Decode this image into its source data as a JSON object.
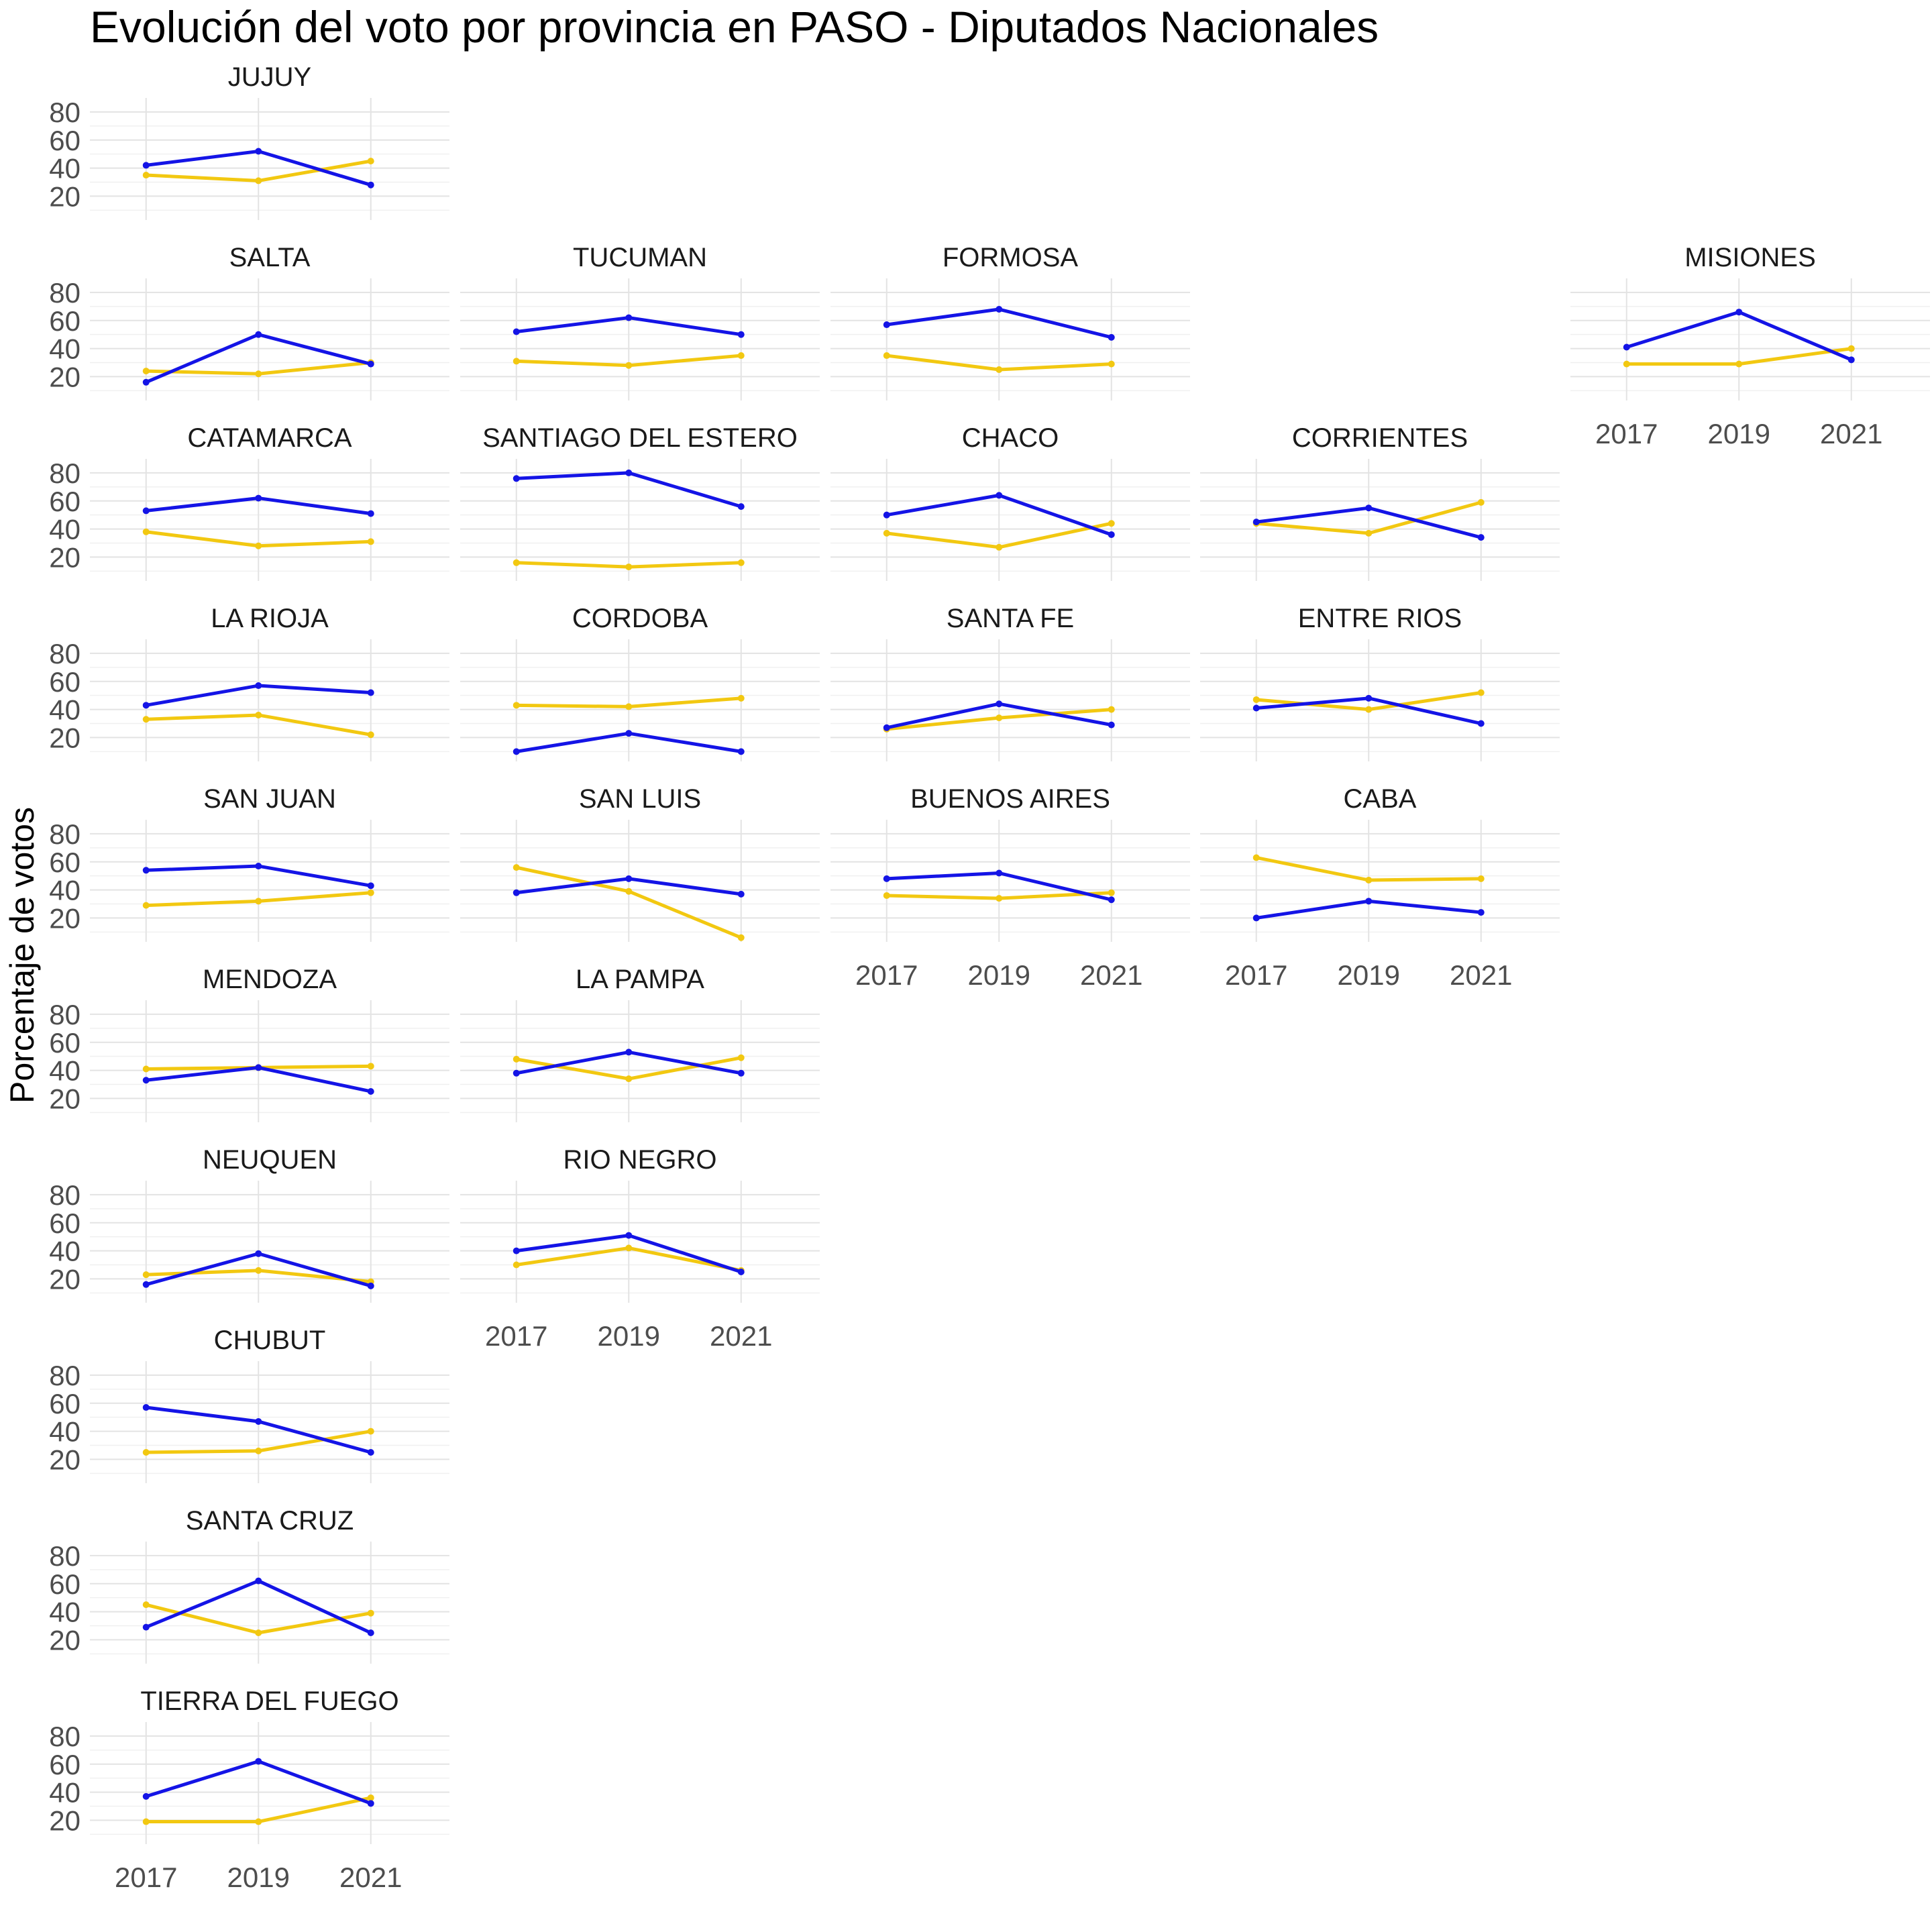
{
  "chart_data": {
    "type": "line",
    "title": "Evolución del voto por provincia en PASO - Diputados Nacionales",
    "xlabel": "",
    "ylabel": "Porcentaje de votos",
    "x": [
      2017,
      2019,
      2021
    ],
    "x_tick_labels": [
      "2017",
      "2019",
      "2021"
    ],
    "y_ticks": [
      20,
      40,
      60,
      80
    ],
    "y_tick_labels": [
      "20",
      "40",
      "60",
      "80"
    ],
    "ylim": [
      3,
      90
    ],
    "grid": true,
    "legend": "none",
    "colors": {
      "series_a": "#1414e6",
      "series_b": "#f2c811"
    },
    "panels": [
      {
        "name": "JUJUY",
        "blue": [
          42,
          52,
          28
        ],
        "yellow": [
          35,
          31,
          45
        ]
      },
      {
        "name": "SALTA",
        "blue": [
          16,
          50,
          29
        ],
        "yellow": [
          24,
          22,
          30
        ]
      },
      {
        "name": "TUCUMAN",
        "blue": [
          52,
          62,
          50
        ],
        "yellow": [
          31,
          28,
          35
        ]
      },
      {
        "name": "FORMOSA",
        "blue": [
          57,
          68,
          48
        ],
        "yellow": [
          35,
          25,
          29
        ]
      },
      {
        "name": "MISIONES",
        "blue": [
          41,
          66,
          32
        ],
        "yellow": [
          29,
          29,
          40
        ]
      },
      {
        "name": "CATAMARCA",
        "blue": [
          53,
          62,
          51
        ],
        "yellow": [
          38,
          28,
          31
        ]
      },
      {
        "name": "SANTIAGO DEL ESTERO",
        "blue": [
          76,
          80,
          56
        ],
        "yellow": [
          16,
          13,
          16
        ]
      },
      {
        "name": "CHACO",
        "blue": [
          50,
          64,
          36
        ],
        "yellow": [
          37,
          27,
          44
        ]
      },
      {
        "name": "CORRIENTES",
        "blue": [
          45,
          55,
          34
        ],
        "yellow": [
          44,
          37,
          59
        ]
      },
      {
        "name": "LA RIOJA",
        "blue": [
          43,
          57,
          52
        ],
        "yellow": [
          33,
          36,
          22
        ]
      },
      {
        "name": "CORDOBA",
        "blue": [
          10,
          23,
          10
        ],
        "yellow": [
          43,
          42,
          48
        ]
      },
      {
        "name": "SANTA FE",
        "blue": [
          27,
          44,
          29
        ],
        "yellow": [
          26,
          34,
          40
        ]
      },
      {
        "name": "ENTRE RIOS",
        "blue": [
          41,
          48,
          30
        ],
        "yellow": [
          47,
          40,
          52
        ]
      },
      {
        "name": "SAN JUAN",
        "blue": [
          54,
          57,
          43
        ],
        "yellow": [
          29,
          32,
          38
        ]
      },
      {
        "name": "SAN LUIS",
        "blue": [
          38,
          48,
          37
        ],
        "yellow": [
          56,
          39,
          6
        ]
      },
      {
        "name": "BUENOS AIRES",
        "blue": [
          48,
          52,
          33
        ],
        "yellow": [
          36,
          34,
          38
        ]
      },
      {
        "name": "CABA",
        "blue": [
          20,
          32,
          24
        ],
        "yellow": [
          63,
          47,
          48
        ]
      },
      {
        "name": "MENDOZA",
        "blue": [
          33,
          42,
          25
        ],
        "yellow": [
          41,
          42,
          43
        ]
      },
      {
        "name": "LA PAMPA",
        "blue": [
          38,
          53,
          38
        ],
        "yellow": [
          48,
          34,
          49
        ]
      },
      {
        "name": "NEUQUEN",
        "blue": [
          16,
          38,
          15
        ],
        "yellow": [
          23,
          26,
          18
        ]
      },
      {
        "name": "RIO NEGRO",
        "blue": [
          40,
          51,
          25
        ],
        "yellow": [
          30,
          42,
          26
        ]
      },
      {
        "name": "CHUBUT",
        "blue": [
          57,
          47,
          25
        ],
        "yellow": [
          25,
          26,
          40
        ]
      },
      {
        "name": "SANTA CRUZ",
        "blue": [
          29,
          62,
          25
        ],
        "yellow": [
          45,
          25,
          39
        ]
      },
      {
        "name": "TIERRA DEL FUEGO",
        "blue": [
          37,
          62,
          32
        ],
        "yellow": [
          19,
          19,
          36
        ]
      }
    ]
  }
}
